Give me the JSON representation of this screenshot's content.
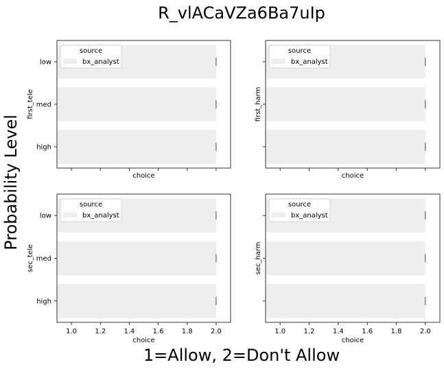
{
  "figure": {
    "title": "R_vlACaVZa6Ba7uIp",
    "ylabel": "Probability Level",
    "xlabel": "1=Allow, 2=Don't Allow"
  },
  "colors": {
    "bar": "#eeeeee",
    "axis": "#000000",
    "legend_border": "#cccccc"
  },
  "chart_data": [
    {
      "type": "bar",
      "orientation": "horizontal",
      "title": "",
      "categories": [
        "low",
        "med",
        "high"
      ],
      "series": [
        {
          "name": "bx_analyst",
          "values": [
            2.0,
            2.0,
            2.0
          ]
        }
      ],
      "xlabel": "choice",
      "ylabel": "first_tele",
      "xlim": [
        0.9,
        2.1
      ],
      "xticks": [
        1.0,
        1.2,
        1.4,
        1.6,
        1.8,
        2.0
      ],
      "show_xtick_labels": false,
      "show_ytick_labels": true,
      "legend": {
        "title": "source",
        "entries": [
          "bx_analyst"
        ],
        "placement": "upper-left"
      },
      "grid": false
    },
    {
      "type": "bar",
      "orientation": "horizontal",
      "title": "",
      "categories": [
        "low",
        "med",
        "high"
      ],
      "series": [
        {
          "name": "bx_analyst",
          "values": [
            2.0,
            2.0,
            2.0
          ]
        }
      ],
      "xlabel": "choice",
      "ylabel": "first_harm",
      "xlim": [
        0.9,
        2.1
      ],
      "xticks": [
        1.0,
        1.2,
        1.4,
        1.6,
        1.8,
        2.0
      ],
      "show_xtick_labels": false,
      "show_ytick_labels": false,
      "legend": {
        "title": "source",
        "entries": [
          "bx_analyst"
        ],
        "placement": "upper-left"
      },
      "grid": false
    },
    {
      "type": "bar",
      "orientation": "horizontal",
      "title": "",
      "categories": [
        "low",
        "med",
        "high"
      ],
      "series": [
        {
          "name": "bx_analyst",
          "values": [
            2.0,
            2.0,
            2.0
          ]
        }
      ],
      "xlabel": "choice",
      "ylabel": "sec_tele",
      "xlim": [
        0.9,
        2.1
      ],
      "xticks": [
        1.0,
        1.2,
        1.4,
        1.6,
        1.8,
        2.0
      ],
      "show_xtick_labels": true,
      "show_ytick_labels": true,
      "legend": {
        "title": "source",
        "entries": [
          "bx_analyst"
        ],
        "placement": "upper-left"
      },
      "grid": false
    },
    {
      "type": "bar",
      "orientation": "horizontal",
      "title": "",
      "categories": [
        "low",
        "med",
        "high"
      ],
      "series": [
        {
          "name": "bx_analyst",
          "values": [
            2.0,
            2.0,
            2.0
          ]
        }
      ],
      "xlabel": "choice",
      "ylabel": "sec_harm",
      "xlim": [
        0.9,
        2.1
      ],
      "xticks": [
        1.0,
        1.2,
        1.4,
        1.6,
        1.8,
        2.0
      ],
      "show_xtick_labels": true,
      "show_ytick_labels": false,
      "legend": {
        "title": "source",
        "entries": [
          "bx_analyst"
        ],
        "placement": "upper-left"
      },
      "grid": false
    }
  ]
}
